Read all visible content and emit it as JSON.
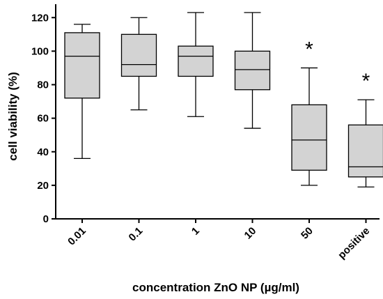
{
  "chart_data": {
    "type": "box",
    "xlabel": "concentration ZnO NP (µg/ml)",
    "ylabel": "cell viability (%)",
    "ylim": [
      0,
      128
    ],
    "yticks": [
      0,
      20,
      40,
      60,
      80,
      100,
      120
    ],
    "categories": [
      "0.01",
      "0.1",
      "1",
      "10",
      "50",
      "positive"
    ],
    "boxes": [
      {
        "category": "0.01",
        "min": 36,
        "q1": 72,
        "median": 97,
        "q3": 111,
        "max": 116,
        "significance": ""
      },
      {
        "category": "0.1",
        "min": 65,
        "q1": 85,
        "median": 92,
        "q3": 110,
        "max": 120,
        "significance": ""
      },
      {
        "category": "1",
        "min": 61,
        "q1": 85,
        "median": 97,
        "q3": 103,
        "max": 123,
        "significance": ""
      },
      {
        "category": "10",
        "min": 54,
        "q1": 77,
        "median": 89,
        "q3": 100,
        "max": 123,
        "significance": ""
      },
      {
        "category": "50",
        "min": 20,
        "q1": 29,
        "median": 47,
        "q3": 68,
        "max": 90,
        "significance": "*"
      },
      {
        "category": "positive",
        "min": 19,
        "q1": 25,
        "median": 31,
        "q3": 56,
        "max": 71,
        "significance": "*"
      }
    ],
    "box_fill": "#d3d3d3",
    "line_color": "#000000",
    "grid": false,
    "legend": false
  }
}
